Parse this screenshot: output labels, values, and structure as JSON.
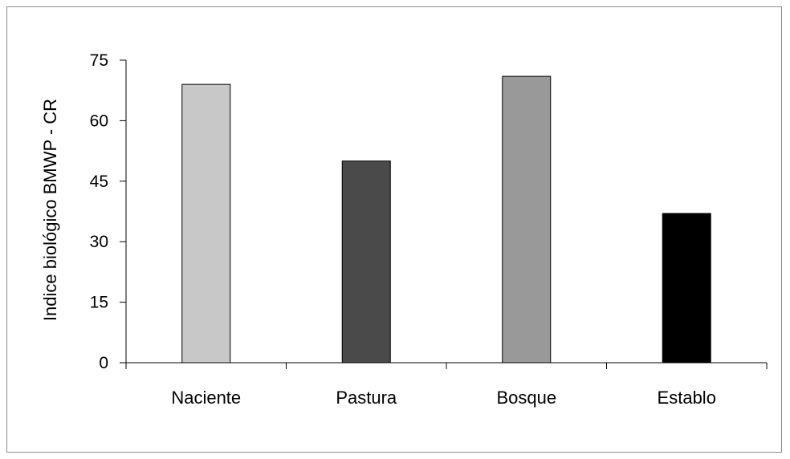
{
  "chart_data": {
    "type": "bar",
    "title": "",
    "xlabel": "",
    "ylabel": "Indice biológico BMWP - CR",
    "categories": [
      "Naciente",
      "Pastura",
      "Bosque",
      "Establo"
    ],
    "values": [
      69,
      50,
      71,
      37
    ],
    "bar_colors": [
      "#c8c8c8",
      "#4a4a4a",
      "#999999",
      "#000000"
    ],
    "ylim": [
      0,
      75
    ],
    "yticks": [
      0,
      15,
      30,
      45,
      60,
      75
    ],
    "ytick_labels": [
      "0",
      "15",
      "30",
      "45",
      "60",
      "75"
    ],
    "grid": false,
    "legend": "none"
  }
}
